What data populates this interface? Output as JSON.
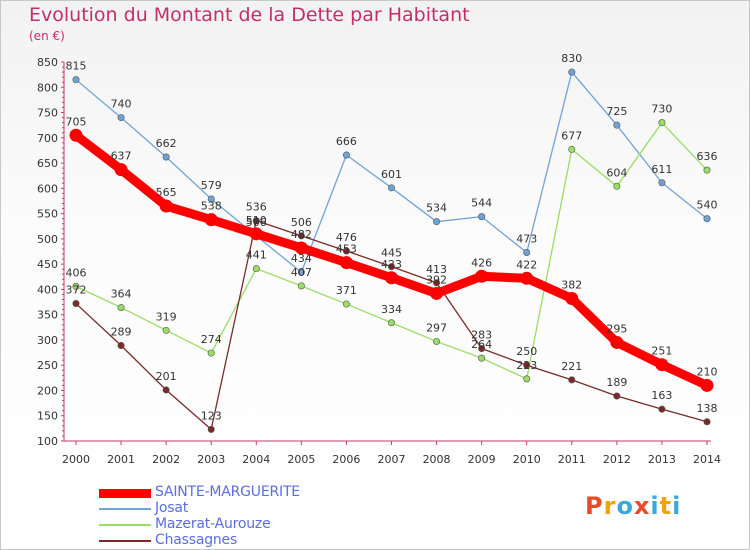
{
  "title": "Evolution du Montant de la Dette par Habitant",
  "subtitle": "(en €)",
  "logo": {
    "text": "Proxiti",
    "colors": [
      "#e84b2a",
      "#f0a30a",
      "#3aa8d8",
      "#e84b2a",
      "#3aa8d8",
      "#f0a30a",
      "#3aa8d8"
    ]
  },
  "chart_data": {
    "type": "line",
    "x": [
      "2000",
      "2001",
      "2002",
      "2003",
      "2004",
      "2005",
      "2006",
      "2007",
      "2008",
      "2009",
      "2010",
      "2011",
      "2012",
      "2013",
      "2014"
    ],
    "ylim": [
      100,
      850
    ],
    "yticks": [
      100,
      150,
      200,
      250,
      300,
      350,
      400,
      450,
      500,
      550,
      600,
      650,
      700,
      750,
      800,
      850
    ],
    "grid": false,
    "legend_position": "bottom-left",
    "series": [
      {
        "name": "SAINTE-MARGUERITE",
        "color": "#ff0000",
        "values": [
          705,
          637,
          565,
          538,
          510,
          482,
          453,
          423,
          392,
          426,
          422,
          382,
          295,
          251,
          210
        ]
      },
      {
        "name": "Josat",
        "color": "#6fa3d6",
        "values": [
          815,
          740,
          662,
          579,
          506,
          434,
          666,
          601,
          534,
          544,
          473,
          830,
          725,
          611,
          540
        ]
      },
      {
        "name": "Mazerat-Aurouze",
        "color": "#99dd66",
        "values": [
          406,
          364,
          319,
          274,
          441,
          407,
          371,
          334,
          297,
          264,
          223,
          677,
          604,
          730,
          636
        ]
      },
      {
        "name": "Chassagnes",
        "color": "#7a2a2a",
        "values": [
          372,
          289,
          201,
          123,
          536,
          506,
          476,
          445,
          413,
          283,
          250,
          221,
          189,
          163,
          138
        ]
      }
    ]
  }
}
